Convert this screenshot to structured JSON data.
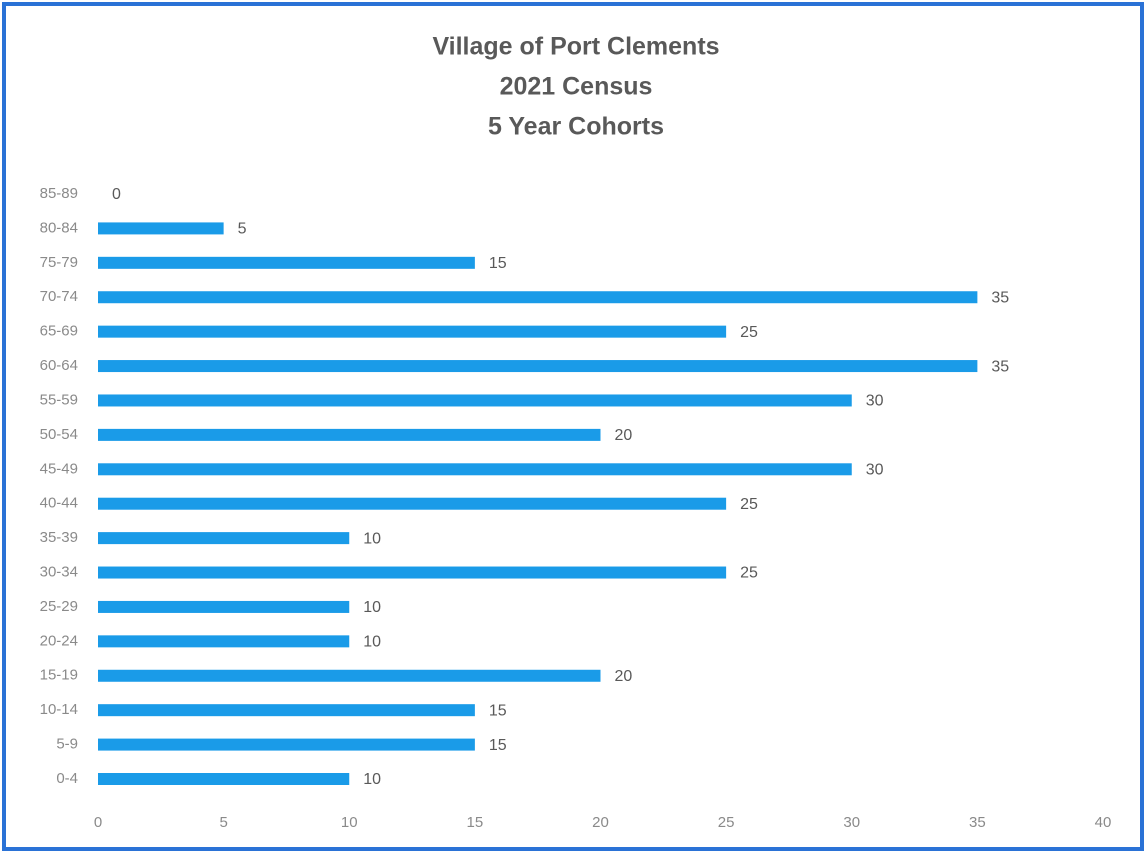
{
  "chart_data": {
    "type": "hbar",
    "title": [
      "Village of Port Clements",
      "2021 Census",
      "5 Year Cohorts"
    ],
    "categories": [
      "0-4",
      "5-9",
      "10-14",
      "15-19",
      "20-24",
      "25-29",
      "30-34",
      "35-39",
      "40-44",
      "45-49",
      "50-54",
      "55-59",
      "60-64",
      "65-69",
      "70-74",
      "75-79",
      "80-84",
      "85-89"
    ],
    "values": [
      10,
      15,
      15,
      20,
      10,
      10,
      25,
      10,
      25,
      30,
      20,
      30,
      35,
      25,
      35,
      15,
      5,
      0
    ],
    "color": "#1a9be8",
    "xlim": [
      0,
      40
    ],
    "xticks": [
      0,
      5,
      10,
      15,
      20,
      25,
      30,
      35,
      40
    ],
    "grid": false
  }
}
